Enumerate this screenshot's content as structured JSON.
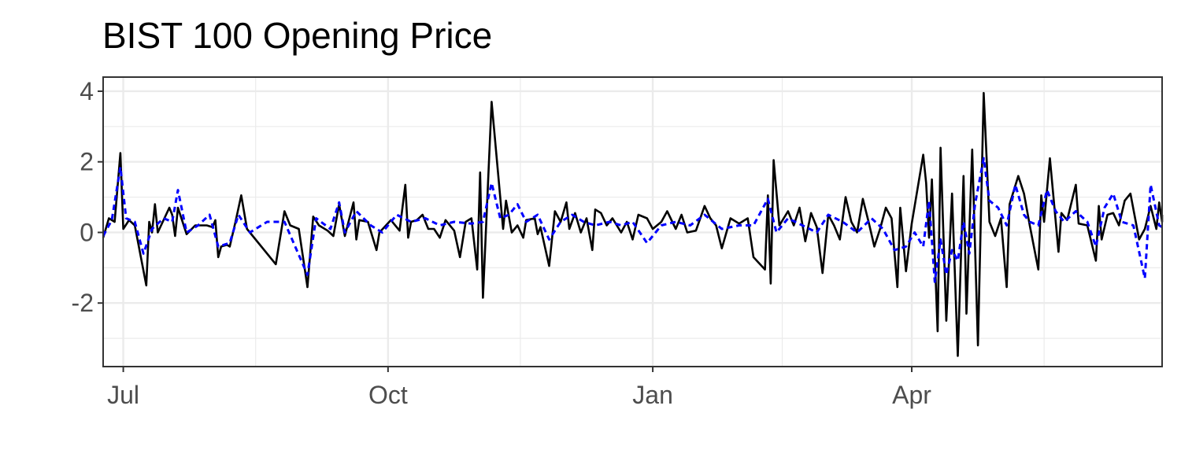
{
  "chart_data": {
    "type": "line",
    "title": "BIST 100 Opening Price",
    "xlabel": "",
    "ylabel": "",
    "grid": true,
    "legend": "none",
    "x_range": [
      "2018-06-24",
      "2019-06-27"
    ],
    "ylim": [
      -3.8,
      4.4
    ],
    "x_ticks": [
      {
        "date": "2018-07-01",
        "label": "Jul"
      },
      {
        "date": "2018-10-01",
        "label": "Oct"
      },
      {
        "date": "2019-01-01",
        "label": "Jan"
      },
      {
        "date": "2019-04-01",
        "label": "Apr"
      }
    ],
    "y_ticks": [
      4,
      2,
      0,
      -2
    ],
    "series": [
      {
        "color": "#000000",
        "style": "solid",
        "points": [
          [
            "2018-06-24",
            -0.15
          ],
          [
            "2018-06-26",
            0.4
          ],
          [
            "2018-06-28",
            0.3
          ],
          [
            "2018-06-30",
            2.25
          ],
          [
            "2018-07-01",
            0.1
          ],
          [
            "2018-07-03",
            0.35
          ],
          [
            "2018-07-05",
            0.2
          ],
          [
            "2018-07-09",
            -1.5
          ],
          [
            "2018-07-10",
            0.3
          ],
          [
            "2018-07-11",
            0.0
          ],
          [
            "2018-07-12",
            0.8
          ],
          [
            "2018-07-13",
            0.0
          ],
          [
            "2018-07-17",
            0.7
          ],
          [
            "2018-07-18",
            0.5
          ],
          [
            "2018-07-19",
            -0.1
          ],
          [
            "2018-07-20",
            0.7
          ],
          [
            "2018-07-23",
            -0.05
          ],
          [
            "2018-07-26",
            0.2
          ],
          [
            "2018-07-30",
            0.2
          ],
          [
            "2018-08-01",
            0.15
          ],
          [
            "2018-08-02",
            0.35
          ],
          [
            "2018-08-03",
            -0.7
          ],
          [
            "2018-08-04",
            -0.4
          ],
          [
            "2018-08-06",
            -0.35
          ],
          [
            "2018-08-07",
            -0.4
          ],
          [
            "2018-08-09",
            0.3
          ],
          [
            "2018-08-11",
            1.05
          ],
          [
            "2018-08-13",
            0.1
          ],
          [
            "2018-08-23",
            -0.9
          ],
          [
            "2018-08-26",
            0.6
          ],
          [
            "2018-08-28",
            0.2
          ],
          [
            "2018-08-31",
            0.1
          ],
          [
            "2018-09-03",
            -1.55
          ],
          [
            "2018-09-05",
            0.45
          ],
          [
            "2018-09-07",
            0.2
          ],
          [
            "2018-09-10",
            0.05
          ],
          [
            "2018-09-12",
            -0.1
          ],
          [
            "2018-09-14",
            0.8
          ],
          [
            "2018-09-16",
            -0.1
          ],
          [
            "2018-09-19",
            0.85
          ],
          [
            "2018-09-20",
            -0.2
          ],
          [
            "2018-09-21",
            0.35
          ],
          [
            "2018-09-24",
            0.3
          ],
          [
            "2018-09-27",
            -0.5
          ],
          [
            "2018-09-28",
            0.0
          ],
          [
            "2018-10-02",
            0.35
          ],
          [
            "2018-10-05",
            0.05
          ],
          [
            "2018-10-07",
            1.35
          ],
          [
            "2018-10-08",
            -0.15
          ],
          [
            "2018-10-09",
            0.3
          ],
          [
            "2018-10-11",
            0.35
          ],
          [
            "2018-10-13",
            0.5
          ],
          [
            "2018-10-15",
            0.1
          ],
          [
            "2018-10-17",
            0.1
          ],
          [
            "2018-10-19",
            -0.15
          ],
          [
            "2018-10-21",
            0.35
          ],
          [
            "2018-10-24",
            0.05
          ],
          [
            "2018-10-26",
            -0.7
          ],
          [
            "2018-10-28",
            0.3
          ],
          [
            "2018-10-30",
            0.4
          ],
          [
            "2018-11-01",
            -1.05
          ],
          [
            "2018-11-02",
            1.7
          ],
          [
            "2018-11-03",
            -1.85
          ],
          [
            "2018-11-06",
            3.7
          ],
          [
            "2018-11-10",
            0.1
          ],
          [
            "2018-11-11",
            0.9
          ],
          [
            "2018-11-13",
            0.0
          ],
          [
            "2018-11-15",
            0.2
          ],
          [
            "2018-11-17",
            -0.15
          ],
          [
            "2018-11-18",
            0.35
          ],
          [
            "2018-11-21",
            0.4
          ],
          [
            "2018-11-22",
            -0.05
          ],
          [
            "2018-11-23",
            0.15
          ],
          [
            "2018-11-26",
            -0.95
          ],
          [
            "2018-11-28",
            0.6
          ],
          [
            "2018-11-30",
            0.3
          ],
          [
            "2018-12-02",
            0.85
          ],
          [
            "2018-12-03",
            0.1
          ],
          [
            "2018-12-05",
            0.55
          ],
          [
            "2018-12-07",
            0.0
          ],
          [
            "2018-12-09",
            0.4
          ],
          [
            "2018-12-11",
            -0.5
          ],
          [
            "2018-12-12",
            0.65
          ],
          [
            "2018-12-14",
            0.55
          ],
          [
            "2018-12-16",
            0.2
          ],
          [
            "2018-12-18",
            0.4
          ],
          [
            "2018-12-21",
            0.0
          ],
          [
            "2018-12-23",
            0.3
          ],
          [
            "2018-12-25",
            -0.2
          ],
          [
            "2018-12-27",
            0.5
          ],
          [
            "2018-12-30",
            0.4
          ],
          [
            "2019-01-01",
            0.1
          ],
          [
            "2019-01-04",
            0.3
          ],
          [
            "2019-01-06",
            0.6
          ],
          [
            "2019-01-09",
            0.1
          ],
          [
            "2019-01-11",
            0.5
          ],
          [
            "2019-01-13",
            0.0
          ],
          [
            "2019-01-16",
            0.05
          ],
          [
            "2019-01-19",
            0.75
          ],
          [
            "2019-01-21",
            0.4
          ],
          [
            "2019-01-23",
            0.2
          ],
          [
            "2019-01-25",
            -0.45
          ],
          [
            "2019-01-28",
            0.4
          ],
          [
            "2019-01-31",
            0.25
          ],
          [
            "2019-02-02",
            0.35
          ],
          [
            "2019-02-03",
            0.4
          ],
          [
            "2019-02-05",
            -0.7
          ],
          [
            "2019-02-09",
            -1.05
          ],
          [
            "2019-02-10",
            1.05
          ],
          [
            "2019-02-11",
            -1.45
          ],
          [
            "2019-02-12",
            2.05
          ],
          [
            "2019-02-14",
            0.2
          ],
          [
            "2019-02-17",
            0.6
          ],
          [
            "2019-02-19",
            0.2
          ],
          [
            "2019-02-21",
            0.7
          ],
          [
            "2019-02-23",
            -0.25
          ],
          [
            "2019-02-25",
            0.55
          ],
          [
            "2019-02-27",
            0.15
          ],
          [
            "2019-03-01",
            -1.15
          ],
          [
            "2019-03-03",
            0.5
          ],
          [
            "2019-03-05",
            0.2
          ],
          [
            "2019-03-07",
            -0.2
          ],
          [
            "2019-03-09",
            1.0
          ],
          [
            "2019-03-11",
            0.3
          ],
          [
            "2019-03-13",
            0.0
          ],
          [
            "2019-03-15",
            0.95
          ],
          [
            "2019-03-17",
            0.3
          ],
          [
            "2019-03-19",
            -0.4
          ],
          [
            "2019-03-21",
            0.1
          ],
          [
            "2019-03-23",
            0.7
          ],
          [
            "2019-03-25",
            0.4
          ],
          [
            "2019-03-27",
            -1.55
          ],
          [
            "2019-03-28",
            0.7
          ],
          [
            "2019-03-30",
            -1.1
          ],
          [
            "2019-04-01",
            0.25
          ],
          [
            "2019-04-05",
            2.2
          ],
          [
            "2019-04-06",
            1.4
          ],
          [
            "2019-04-07",
            -0.15
          ],
          [
            "2019-04-08",
            1.5
          ],
          [
            "2019-04-10",
            -2.8
          ],
          [
            "2019-04-11",
            2.4
          ],
          [
            "2019-04-13",
            -2.5
          ],
          [
            "2019-04-15",
            1.1
          ],
          [
            "2019-04-17",
            -3.5
          ],
          [
            "2019-04-19",
            1.6
          ],
          [
            "2019-04-20",
            -2.3
          ],
          [
            "2019-04-22",
            2.35
          ],
          [
            "2019-04-24",
            -3.2
          ],
          [
            "2019-04-26",
            3.95
          ],
          [
            "2019-04-28",
            0.3
          ],
          [
            "2019-04-30",
            -0.1
          ],
          [
            "2019-05-02",
            0.4
          ],
          [
            "2019-05-04",
            -1.55
          ],
          [
            "2019-05-05",
            0.8
          ],
          [
            "2019-05-08",
            1.6
          ],
          [
            "2019-05-10",
            1.1
          ],
          [
            "2019-05-12",
            0.2
          ],
          [
            "2019-05-15",
            -1.05
          ],
          [
            "2019-05-16",
            1.05
          ],
          [
            "2019-05-17",
            0.3
          ],
          [
            "2019-05-19",
            2.1
          ],
          [
            "2019-05-22",
            -0.55
          ],
          [
            "2019-05-23",
            0.55
          ],
          [
            "2019-05-25",
            0.35
          ],
          [
            "2019-05-28",
            1.35
          ],
          [
            "2019-05-29",
            0.25
          ],
          [
            "2019-06-01",
            0.2
          ],
          [
            "2019-06-04",
            -0.8
          ],
          [
            "2019-06-05",
            0.75
          ],
          [
            "2019-06-06",
            -0.2
          ],
          [
            "2019-06-08",
            0.5
          ],
          [
            "2019-06-10",
            0.55
          ],
          [
            "2019-06-12",
            0.2
          ],
          [
            "2019-06-14",
            0.9
          ],
          [
            "2019-06-16",
            1.1
          ],
          [
            "2019-06-19",
            -0.2
          ],
          [
            "2019-06-21",
            0.1
          ],
          [
            "2019-06-23",
            0.75
          ],
          [
            "2019-06-25",
            0.1
          ],
          [
            "2019-06-26",
            0.85
          ],
          [
            "2019-06-27",
            0.3
          ],
          [
            "2019-06-27",
            0.5
          ]
        ]
      },
      {
        "color": "#0000ff",
        "style": "dashed",
        "points": [
          [
            "2018-06-24",
            -0.1
          ],
          [
            "2018-06-27",
            0.35
          ],
          [
            "2018-06-30",
            1.85
          ],
          [
            "2018-07-02",
            0.4
          ],
          [
            "2018-07-05",
            0.3
          ],
          [
            "2018-07-08",
            -0.6
          ],
          [
            "2018-07-11",
            0.1
          ],
          [
            "2018-07-15",
            0.4
          ],
          [
            "2018-07-18",
            0.3
          ],
          [
            "2018-07-20",
            1.2
          ],
          [
            "2018-07-23",
            0.0
          ],
          [
            "2018-07-27",
            0.2
          ],
          [
            "2018-07-31",
            0.5
          ],
          [
            "2018-08-03",
            -0.4
          ],
          [
            "2018-08-07",
            -0.3
          ],
          [
            "2018-08-10",
            0.5
          ],
          [
            "2018-08-14",
            0.0
          ],
          [
            "2018-08-20",
            0.3
          ],
          [
            "2018-08-26",
            0.3
          ],
          [
            "2018-09-03",
            -1.2
          ],
          [
            "2018-09-06",
            0.4
          ],
          [
            "2018-09-11",
            0.1
          ],
          [
            "2018-09-14",
            0.85
          ],
          [
            "2018-09-16",
            0.0
          ],
          [
            "2018-09-20",
            0.6
          ],
          [
            "2018-09-25",
            0.2
          ],
          [
            "2018-09-29",
            0.0
          ],
          [
            "2018-10-04",
            0.5
          ],
          [
            "2018-10-09",
            0.3
          ],
          [
            "2018-10-14",
            0.4
          ],
          [
            "2018-10-19",
            0.2
          ],
          [
            "2018-10-24",
            0.3
          ],
          [
            "2018-10-30",
            0.25
          ],
          [
            "2018-11-03",
            0.3
          ],
          [
            "2018-11-06",
            1.4
          ],
          [
            "2018-11-09",
            0.4
          ],
          [
            "2018-11-12",
            0.5
          ],
          [
            "2018-11-15",
            0.8
          ],
          [
            "2018-11-18",
            0.3
          ],
          [
            "2018-11-22",
            0.5
          ],
          [
            "2018-11-26",
            -0.2
          ],
          [
            "2018-11-30",
            0.3
          ],
          [
            "2018-12-04",
            0.5
          ],
          [
            "2018-12-08",
            0.3
          ],
          [
            "2018-12-12",
            0.2
          ],
          [
            "2018-12-17",
            0.3
          ],
          [
            "2018-12-21",
            0.2
          ],
          [
            "2018-12-25",
            0.3
          ],
          [
            "2018-12-30",
            -0.3
          ],
          [
            "2019-01-04",
            0.2
          ],
          [
            "2019-01-09",
            0.3
          ],
          [
            "2019-01-14",
            0.2
          ],
          [
            "2019-01-19",
            0.5
          ],
          [
            "2019-01-25",
            0.1
          ],
          [
            "2019-01-31",
            0.2
          ],
          [
            "2019-02-05",
            0.2
          ],
          [
            "2019-02-10",
            0.95
          ],
          [
            "2019-02-13",
            0.0
          ],
          [
            "2019-02-17",
            0.4
          ],
          [
            "2019-02-22",
            0.2
          ],
          [
            "2019-02-27",
            0.0
          ],
          [
            "2019-03-03",
            0.5
          ],
          [
            "2019-03-08",
            0.3
          ],
          [
            "2019-03-13",
            0.0
          ],
          [
            "2019-03-18",
            0.4
          ],
          [
            "2019-03-22",
            0.1
          ],
          [
            "2019-03-26",
            -0.5
          ],
          [
            "2019-03-30",
            -0.4
          ],
          [
            "2019-04-02",
            0.0
          ],
          [
            "2019-04-05",
            -0.4
          ],
          [
            "2019-04-07",
            0.9
          ],
          [
            "2019-04-09",
            -1.4
          ],
          [
            "2019-04-11",
            -0.2
          ],
          [
            "2019-04-13",
            -1.2
          ],
          [
            "2019-04-15",
            -0.5
          ],
          [
            "2019-04-17",
            -0.8
          ],
          [
            "2019-04-19",
            0.3
          ],
          [
            "2019-04-21",
            -0.6
          ],
          [
            "2019-04-23",
            0.8
          ],
          [
            "2019-04-26",
            2.1
          ],
          [
            "2019-04-28",
            0.9
          ],
          [
            "2019-05-01",
            0.7
          ],
          [
            "2019-05-04",
            0.2
          ],
          [
            "2019-05-07",
            1.35
          ],
          [
            "2019-05-10",
            0.5
          ],
          [
            "2019-05-12",
            0.3
          ],
          [
            "2019-05-15",
            0.2
          ],
          [
            "2019-05-18",
            1.2
          ],
          [
            "2019-05-21",
            0.6
          ],
          [
            "2019-05-24",
            0.3
          ],
          [
            "2019-05-28",
            0.6
          ],
          [
            "2019-06-01",
            0.3
          ],
          [
            "2019-06-04",
            -0.4
          ],
          [
            "2019-06-07",
            0.7
          ],
          [
            "2019-06-10",
            1.1
          ],
          [
            "2019-06-13",
            0.3
          ],
          [
            "2019-06-17",
            0.2
          ],
          [
            "2019-06-21",
            -1.3
          ],
          [
            "2019-06-23",
            1.35
          ],
          [
            "2019-06-26",
            0.2
          ],
          [
            "2019-06-27",
            0.15
          ]
        ]
      }
    ]
  }
}
